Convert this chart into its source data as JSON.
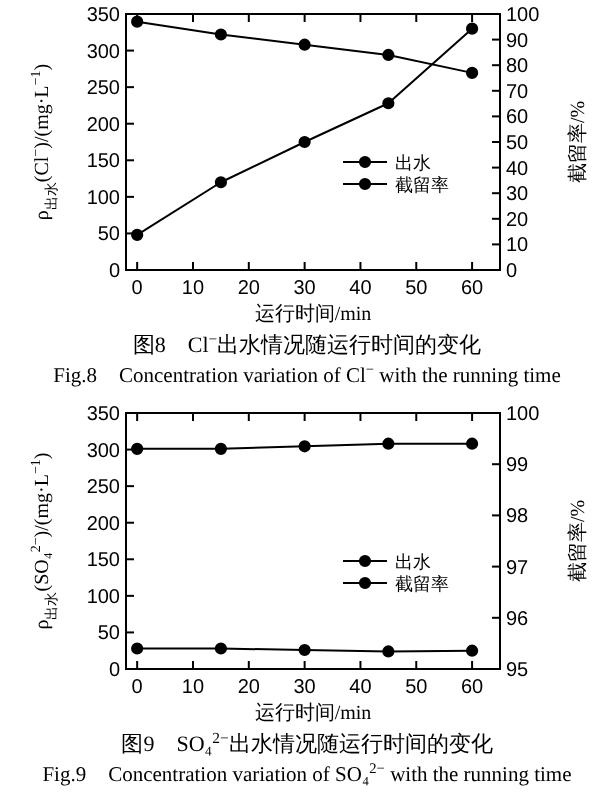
{
  "chart_data": [
    {
      "type": "line",
      "xlabel": "运行时间/min",
      "ylabel": "ρ$_{出水}$(Cl$^{−}$)/(mg·L$^{−1}$)",
      "y2label": "截留率/%",
      "x": [
        0,
        15,
        30,
        45,
        60
      ],
      "series": [
        {
          "name": "出水",
          "color": "#000000",
          "values": [
            48,
            120,
            175,
            228,
            330
          ]
        },
        {
          "name": "截留率",
          "color": "#000000",
          "axis": "y2",
          "values": [
            97,
            92,
            88,
            84,
            77
          ]
        }
      ],
      "xlim": [
        -2,
        65
      ],
      "xticks": [
        0,
        10,
        20,
        30,
        40,
        50,
        60
      ],
      "ylim": [
        0,
        350
      ],
      "yticks": [
        0,
        50,
        100,
        150,
        200,
        250,
        300,
        350
      ],
      "y2lim": [
        0,
        100
      ],
      "y2ticks": [
        0,
        10,
        20,
        30,
        40,
        50,
        60,
        70,
        80,
        90,
        100
      ],
      "marker": "circle",
      "legend": "center",
      "grid": false,
      "annotations": [
        "图8　Cl$^{−}$出水情况随运行时间的变化",
        "Fig.8　Concentration variation of Cl$^{−}$ with the running time"
      ]
    },
    {
      "type": "line",
      "xlabel": "运行时间/min",
      "ylabel": "ρ$_{出水}$(SO₄$^{2−}$)/(mg·L$^{−1}$)",
      "y2label": "截留率/%",
      "x": [
        0,
        15,
        30,
        45,
        60
      ],
      "series": [
        {
          "name": "出水",
          "color": "#000000",
          "values": [
            28,
            28,
            26,
            24,
            25
          ]
        },
        {
          "name": "截留率",
          "color": "#000000",
          "axis": "y2",
          "values": [
            99.3,
            99.3,
            99.35,
            99.4,
            99.4
          ]
        }
      ],
      "xlim": [
        -2,
        65
      ],
      "xticks": [
        0,
        10,
        20,
        30,
        40,
        50,
        60
      ],
      "ylim": [
        0,
        350
      ],
      "yticks": [
        0,
        50,
        100,
        150,
        200,
        250,
        300,
        350
      ],
      "y2lim": [
        95,
        100
      ],
      "y2ticks": [
        95,
        96,
        97,
        98,
        99,
        100
      ],
      "marker": "circle",
      "legend": "center",
      "grid": false,
      "annotations": [
        "图9　SO₄$^{2−}$出水情况随运行时间的变化",
        "Fig.9　Concentration variation of SO₄$^{2−}$ with the running time"
      ]
    }
  ]
}
